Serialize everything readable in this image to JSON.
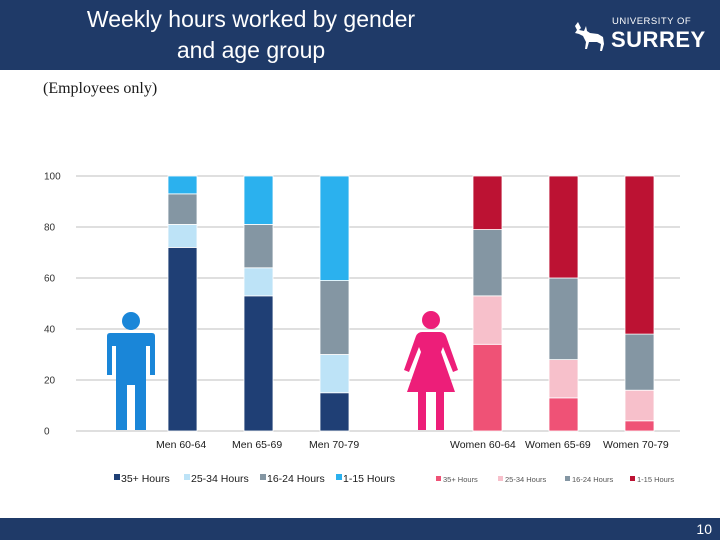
{
  "slide": {
    "title_line1": "Weekly hours worked by gender",
    "title_line2": "and age group",
    "subtitle": "(Employees only)",
    "page_number": "10",
    "logo_line1": "UNIVERSITY OF",
    "logo_line2": "SURREY"
  },
  "colors": {
    "header": "#1f3a68",
    "grid": "#bfbfbf",
    "men": {
      "35+ Hours": "#1f3f75",
      "25-34 Hours": "#bde3f7",
      "16-24 Hours": "#8496a3",
      "1-15 Hours": "#2bb1ee"
    },
    "women": {
      "35+ Hours": "#ef5276",
      "25-34 Hours": "#f7c0cb",
      "16-24 Hours": "#8496a3",
      "1-15 Hours": "#bc1233"
    },
    "man_icon": "#1a86d8",
    "woman_icon": "#ed1e79"
  },
  "chart_data": {
    "type": "bar",
    "stacked": true,
    "ylim": [
      0,
      100
    ],
    "yticks": [
      0,
      20,
      40,
      60,
      80,
      100
    ],
    "categories": [
      "Men  60-64",
      "Men  65-69",
      "Men  70-79",
      "Women 60-64",
      "Women 65-69",
      "Women 70-79"
    ],
    "series": [
      {
        "name": "35+ Hours",
        "values": [
          72,
          53,
          15,
          34,
          13,
          4
        ]
      },
      {
        "name": "25-34 Hours",
        "values": [
          9,
          11,
          15,
          19,
          15,
          12
        ]
      },
      {
        "name": "16-24 Hours",
        "values": [
          12,
          17,
          29,
          26,
          32,
          22
        ]
      },
      {
        "name": "1-15 Hours",
        "values": [
          7,
          19,
          41,
          21,
          40,
          62
        ]
      }
    ],
    "legend_men": [
      "35+ Hours",
      "25-34 Hours",
      "16-24 Hours",
      "1-15 Hours"
    ],
    "legend_women": [
      "35+ Hours",
      "25-34 Hours",
      "16-24 Hours",
      "1-15 Hours"
    ]
  }
}
